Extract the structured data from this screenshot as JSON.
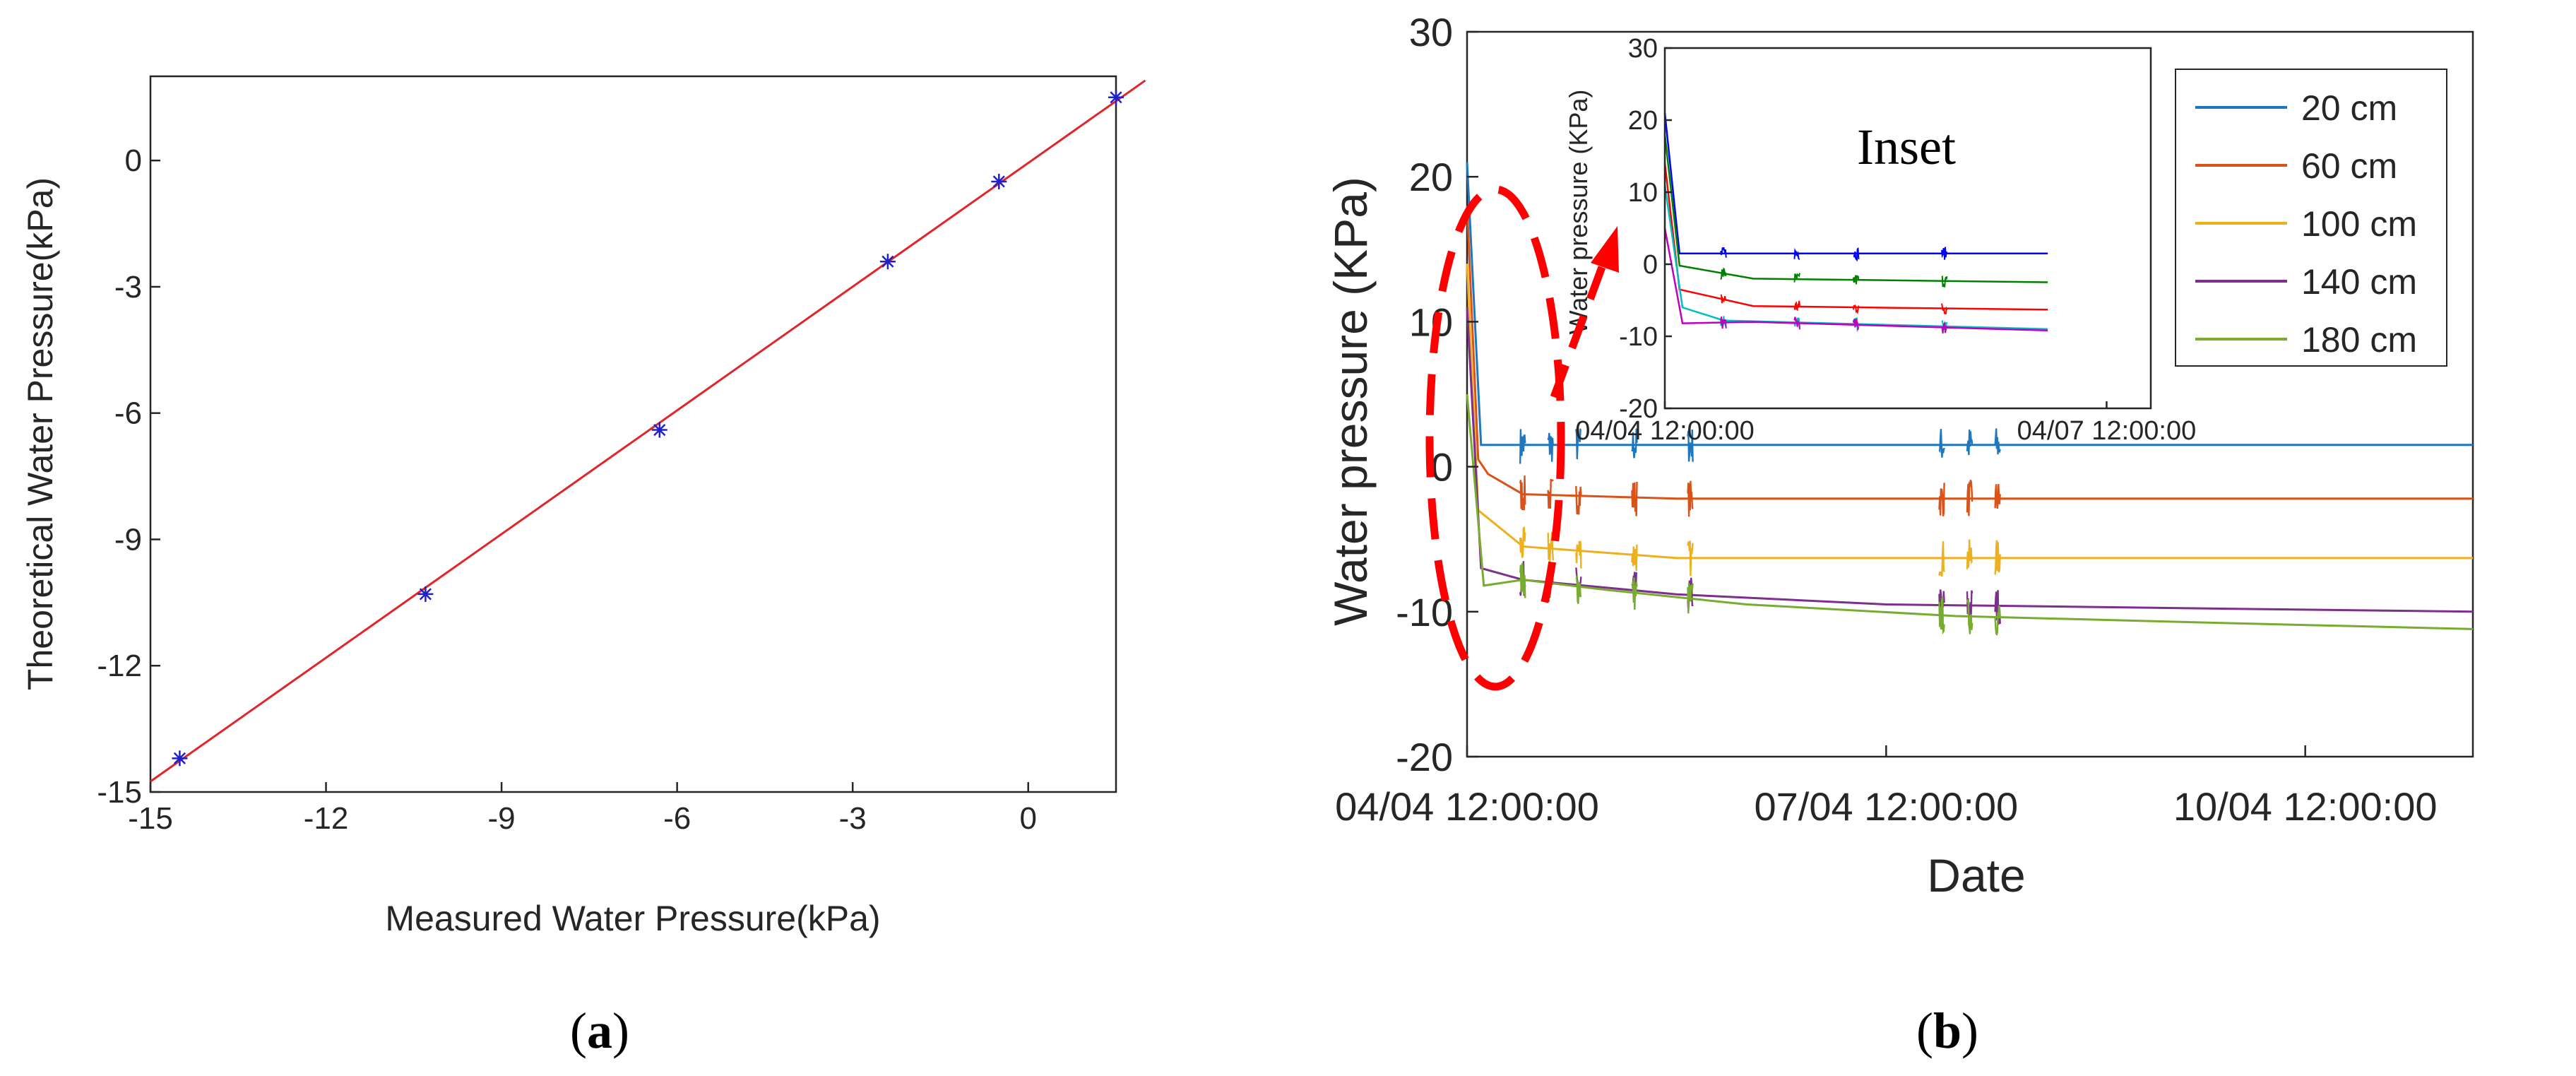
{
  "panels": {
    "a": {
      "label_paren_open": "(",
      "label_letter": "a",
      "label_paren_close": ")"
    },
    "b": {
      "label_paren_open": "(",
      "label_letter": "b",
      "label_paren_close": ")"
    }
  },
  "chart_data": [
    {
      "id": "a",
      "type": "scatter",
      "title": "",
      "xlabel": "Measured Water Pressure(kPa)",
      "ylabel": "Theoretical Water Pressure(kPa)",
      "xlim": [
        -15,
        1.5
      ],
      "ylim": [
        -15,
        2
      ],
      "xticks": [
        -15,
        -12,
        -9,
        -6,
        -3,
        0
      ],
      "yticks": [
        -15,
        -12,
        -9,
        -6,
        -3,
        0
      ],
      "grid": false,
      "points": [
        {
          "x": -14.5,
          "y": -14.2
        },
        {
          "x": -10.3,
          "y": -10.3
        },
        {
          "x": -6.3,
          "y": -6.4
        },
        {
          "x": -2.4,
          "y": -2.4
        },
        {
          "x": -0.5,
          "y": -0.5
        },
        {
          "x": 1.5,
          "y": 1.5
        }
      ],
      "fit_line": {
        "x": [
          -15,
          2
        ],
        "y": [
          -14.75,
          1.9
        ]
      },
      "colors": {
        "points": "#2020c8",
        "fit": "#e0262a"
      }
    },
    {
      "id": "b",
      "type": "line",
      "title": "",
      "xlabel": "Date",
      "ylabel": "Water pressure (KPa)",
      "xlim": [
        0,
        7.2
      ],
      "ylim": [
        -20,
        30
      ],
      "xticks": [
        0,
        3,
        6
      ],
      "xticklabels": [
        "04/04 12:00:00",
        "07/04 12:00:00",
        "10/04 12:00:00"
      ],
      "yticks": [
        -20,
        -10,
        0,
        10,
        20,
        30
      ],
      "grid": false,
      "legend_position": "top-right",
      "series": [
        {
          "name": "20 cm",
          "color": "#1f77bd",
          "points": [
            [
              0.0,
              21.0
            ],
            [
              0.1,
              1.5
            ],
            [
              7.2,
              1.5
            ]
          ],
          "noise": [
            0.4,
            0.6,
            0.8,
            1.2,
            1.6,
            3.4,
            3.6,
            3.8
          ]
        },
        {
          "name": "60 cm",
          "color": "#d95319",
          "points": [
            [
              0.0,
              18.0
            ],
            [
              0.08,
              0.5
            ],
            [
              0.15,
              -0.5
            ],
            [
              0.4,
              -1.9
            ],
            [
              1.5,
              -2.2
            ],
            [
              3.5,
              -2.2
            ],
            [
              7.2,
              -2.2
            ]
          ],
          "noise": [
            0.4,
            0.6,
            0.8,
            1.2,
            1.6,
            3.4,
            3.6,
            3.8
          ]
        },
        {
          "name": "100 cm",
          "color": "#edb120",
          "points": [
            [
              0.0,
              14.0
            ],
            [
              0.08,
              -3.0
            ],
            [
              0.4,
              -5.5
            ],
            [
              1.5,
              -6.3
            ],
            [
              3.5,
              -6.3
            ],
            [
              7.2,
              -6.3
            ]
          ],
          "noise": [
            0.4,
            0.6,
            0.8,
            1.2,
            1.6,
            3.4,
            3.6,
            3.8
          ]
        },
        {
          "name": "140 cm",
          "color": "#7e2f8e",
          "points": [
            [
              0.0,
              11.0
            ],
            [
              0.1,
              -7.0
            ],
            [
              0.4,
              -7.8
            ],
            [
              1.5,
              -8.8
            ],
            [
              3.0,
              -9.5
            ],
            [
              5.5,
              -9.8
            ],
            [
              7.2,
              -10.0
            ]
          ],
          "noise": [
            0.4,
            0.6,
            0.8,
            1.2,
            1.6,
            3.4,
            3.6,
            3.8
          ]
        },
        {
          "name": "180 cm",
          "color": "#77ac30",
          "points": [
            [
              0.0,
              5.0
            ],
            [
              0.12,
              -8.2
            ],
            [
              0.4,
              -7.8
            ],
            [
              1.0,
              -8.5
            ],
            [
              2.0,
              -9.5
            ],
            [
              3.5,
              -10.3
            ],
            [
              5.5,
              -10.8
            ],
            [
              7.2,
              -11.2
            ]
          ],
          "noise": [
            0.4,
            0.6,
            0.8,
            1.2,
            1.6,
            3.4,
            3.6,
            3.8
          ]
        }
      ],
      "inset": {
        "title": "Inset",
        "ylabel": "Water pressure (KPa)",
        "xlim": [
          0,
          3.3
        ],
        "ylim": [
          -20,
          30
        ],
        "xticks": [
          0,
          3
        ],
        "xticklabels": [
          "04/04 12:00:00",
          "04/07 12:00:00"
        ],
        "yticks": [
          -20,
          -10,
          0,
          10,
          20,
          30
        ],
        "series": [
          {
            "name": "20 cm",
            "color": "#0000ff",
            "points": [
              [
                0.0,
                21.0
              ],
              [
                0.1,
                1.5
              ],
              [
                2.6,
                1.5
              ]
            ],
            "noise": [
              0.4,
              0.9,
              1.3,
              1.9
            ]
          },
          {
            "name": "60 cm",
            "color": "#008000",
            "points": [
              [
                0.0,
                18.0
              ],
              [
                0.1,
                -0.2
              ],
              [
                0.6,
                -2.0
              ],
              [
                2.6,
                -2.5
              ]
            ],
            "noise": [
              0.4,
              0.9,
              1.3,
              1.9
            ]
          },
          {
            "name": "100 cm",
            "color": "#ff0000",
            "points": [
              [
                0.0,
                14.0
              ],
              [
                0.1,
                -3.5
              ],
              [
                0.6,
                -5.8
              ],
              [
                2.6,
                -6.3
              ]
            ],
            "noise": [
              0.4,
              0.9,
              1.3,
              1.9
            ]
          },
          {
            "name": "140 cm",
            "color": "#00bfbf",
            "points": [
              [
                0.0,
                11.0
              ],
              [
                0.12,
                -6.0
              ],
              [
                0.4,
                -7.8
              ],
              [
                2.6,
                -9.0
              ]
            ],
            "noise": [
              0.4,
              0.9,
              1.3,
              1.9
            ]
          },
          {
            "name": "180 cm",
            "color": "#bf00bf",
            "points": [
              [
                0.0,
                5.0
              ],
              [
                0.12,
                -8.2
              ],
              [
                0.6,
                -8.0
              ],
              [
                2.6,
                -9.2
              ]
            ],
            "noise": [
              0.4,
              0.9,
              1.3,
              1.9
            ]
          }
        ]
      },
      "annotation": {
        "shape": "dashed-ellipse-with-arrow",
        "color": "#ff0000",
        "points_to": "inset"
      }
    }
  ]
}
